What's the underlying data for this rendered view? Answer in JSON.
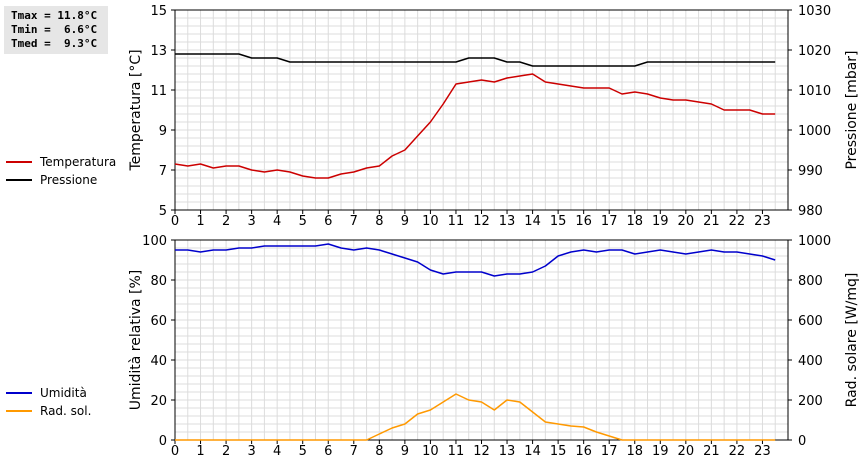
{
  "stats": {
    "tmax": "Tmax = 11.8°C",
    "tmin": "Tmin =  6.6°C",
    "tmed": "Tmed =  9.3°C"
  },
  "legend_top": [
    {
      "label": "Temperatura",
      "color": "#cc0000"
    },
    {
      "label": "Pressione",
      "color": "#000000"
    }
  ],
  "legend_bottom": [
    {
      "label": "Umidità",
      "color": "#0000cc"
    },
    {
      "label": "Rad. sol.",
      "color": "#ff9900"
    }
  ],
  "chart_data": [
    {
      "type": "line",
      "title": "",
      "xlabel": "",
      "xlim": [
        0,
        24
      ],
      "x_ticks": [
        "0",
        "1",
        "2",
        "3",
        "4",
        "5",
        "6",
        "7",
        "8",
        "9",
        "10",
        "11",
        "12",
        "13",
        "14",
        "15",
        "16",
        "17",
        "18",
        "19",
        "20",
        "21",
        "22",
        "23"
      ],
      "ylabel_left": "Temperatura [°C]",
      "ylim_left": [
        5,
        15
      ],
      "y_ticks_left": [
        "5",
        "7",
        "9",
        "11",
        "13",
        "15"
      ],
      "ylabel_right": "Pressione [mbar]",
      "ylim_right": [
        980,
        1030
      ],
      "y_ticks_right": [
        "980",
        "990",
        "1000",
        "1010",
        "1020",
        "1030"
      ],
      "grid": true,
      "series": [
        {
          "name": "Temperatura",
          "axis": "left",
          "color": "#cc0000",
          "x": [
            0,
            0.5,
            1,
            1.5,
            2,
            2.5,
            3,
            3.5,
            4,
            4.5,
            5,
            5.5,
            6,
            6.5,
            7,
            7.5,
            8,
            8.5,
            9,
            9.5,
            10,
            10.5,
            11,
            11.5,
            12,
            12.5,
            13,
            13.5,
            14,
            14.5,
            15,
            15.5,
            16,
            16.5,
            17,
            17.5,
            18,
            18.5,
            19,
            19.5,
            20,
            20.5,
            21,
            21.5,
            22,
            22.5,
            23,
            23.5
          ],
          "values": [
            7.3,
            7.2,
            7.3,
            7.1,
            7.2,
            7.2,
            7.0,
            6.9,
            7.0,
            6.9,
            6.7,
            6.6,
            6.6,
            6.8,
            6.9,
            7.1,
            7.2,
            7.7,
            8.0,
            8.7,
            9.4,
            10.3,
            11.3,
            11.4,
            11.5,
            11.4,
            11.6,
            11.7,
            11.8,
            11.4,
            11.3,
            11.2,
            11.1,
            11.1,
            11.1,
            10.8,
            10.9,
            10.8,
            10.6,
            10.5,
            10.5,
            10.4,
            10.3,
            10.0,
            10.0,
            10.0,
            9.8,
            9.8
          ]
        },
        {
          "name": "Pressione",
          "axis": "right",
          "color": "#000000",
          "x": [
            0,
            1,
            2,
            2.5,
            3,
            4,
            4.5,
            5,
            6,
            7,
            8,
            9,
            10,
            11,
            11.5,
            12,
            12.5,
            13,
            13.5,
            14,
            15,
            16,
            17,
            18,
            18.5,
            19,
            20,
            21,
            22,
            23,
            23.5
          ],
          "values": [
            1019,
            1019,
            1019,
            1019,
            1018,
            1018,
            1017,
            1017,
            1017,
            1017,
            1017,
            1017,
            1017,
            1017,
            1018,
            1018,
            1018,
            1017,
            1017,
            1016,
            1016,
            1016,
            1016,
            1016,
            1017,
            1017,
            1017,
            1017,
            1017,
            1017,
            1017
          ]
        }
      ]
    },
    {
      "type": "line",
      "title": "",
      "xlabel": "",
      "xlim": [
        0,
        24
      ],
      "x_ticks": [
        "0",
        "1",
        "2",
        "3",
        "4",
        "5",
        "6",
        "7",
        "8",
        "9",
        "10",
        "11",
        "12",
        "13",
        "14",
        "15",
        "16",
        "17",
        "18",
        "19",
        "20",
        "21",
        "22",
        "23"
      ],
      "ylabel_left": "Umidità relativa [%]",
      "ylim_left": [
        0,
        100
      ],
      "y_ticks_left": [
        "0",
        "20",
        "40",
        "60",
        "80",
        "100"
      ],
      "ylabel_right": "Rad. solare [W/mq]",
      "ylim_right": [
        0,
        1000
      ],
      "y_ticks_right": [
        "0",
        "200",
        "400",
        "600",
        "800",
        "1000"
      ],
      "grid": true,
      "series": [
        {
          "name": "Umidità",
          "axis": "left",
          "color": "#0000cc",
          "x": [
            0,
            0.5,
            1,
            1.5,
            2,
            2.5,
            3,
            3.5,
            4,
            4.5,
            5,
            5.5,
            6,
            6.5,
            7,
            7.5,
            8,
            8.5,
            9,
            9.5,
            10,
            10.5,
            11,
            11.5,
            12,
            12.5,
            13,
            13.5,
            14,
            14.5,
            15,
            15.5,
            16,
            16.5,
            17,
            17.5,
            18,
            18.5,
            19,
            19.5,
            20,
            20.5,
            21,
            21.5,
            22,
            22.5,
            23,
            23.5
          ],
          "values": [
            95,
            95,
            94,
            95,
            95,
            96,
            96,
            97,
            97,
            97,
            97,
            97,
            98,
            96,
            95,
            96,
            95,
            93,
            91,
            89,
            85,
            83,
            84,
            84,
            84,
            82,
            83,
            83,
            84,
            87,
            92,
            94,
            95,
            94,
            95,
            95,
            93,
            94,
            95,
            94,
            93,
            94,
            95,
            94,
            94,
            93,
            92,
            90
          ]
        },
        {
          "name": "Rad. sol.",
          "axis": "right",
          "color": "#ff9900",
          "x": [
            0,
            1,
            2,
            3,
            4,
            5,
            6,
            7,
            7.5,
            8,
            8.5,
            9,
            9.5,
            10,
            10.5,
            11,
            11.5,
            12,
            12.5,
            13,
            13.5,
            14,
            14.5,
            15,
            15.5,
            16,
            16.5,
            17,
            17.5,
            18,
            19,
            20,
            21,
            22,
            23,
            23.5
          ],
          "values": [
            0,
            0,
            0,
            0,
            0,
            0,
            0,
            0,
            0,
            30,
            60,
            80,
            130,
            150,
            190,
            230,
            200,
            190,
            150,
            200,
            190,
            140,
            90,
            80,
            70,
            65,
            40,
            20,
            0,
            0,
            0,
            0,
            0,
            0,
            0,
            0
          ]
        }
      ]
    }
  ]
}
